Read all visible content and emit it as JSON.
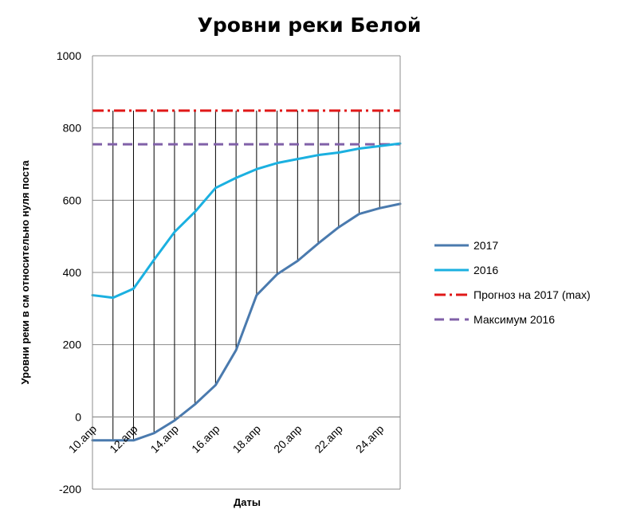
{
  "chart_data": {
    "type": "line",
    "title": "Уровни реки Белой",
    "xlabel": "Даты",
    "ylabel": "Уровни реки в см относительно нуля поста",
    "ylim": [
      -200,
      1000
    ],
    "yticks": [
      -200,
      0,
      200,
      400,
      600,
      800,
      1000
    ],
    "categories": [
      "10.апр",
      "11.апр",
      "12.апр",
      "13.апр",
      "14.апр",
      "15.апр",
      "16.апр",
      "17.апр",
      "18.апр",
      "19.апр",
      "20.апр",
      "21.апр",
      "22.апр",
      "23.апр",
      "24.апр",
      "25.апр"
    ],
    "xtick_labels": [
      "10.апр",
      "12.апр",
      "14.апр",
      "16.апр",
      "18.апр",
      "20.апр",
      "22.апр",
      "24.апр"
    ],
    "grid": true,
    "legend_position": "right",
    "series": [
      {
        "name": "2017",
        "color": "#4A7AAE",
        "style": "solid",
        "values": [
          -65,
          -65,
          -65,
          -45,
          -10,
          35,
          88,
          185,
          337,
          395,
          432,
          480,
          525,
          562,
          578,
          590
        ]
      },
      {
        "name": "2016",
        "color": "#1BB0E0",
        "style": "solid",
        "values": [
          337,
          330,
          355,
          435,
          512,
          568,
          634,
          662,
          686,
          703,
          714,
          725,
          732,
          743,
          750,
          757
        ]
      },
      {
        "name": "Прогноз на 2017 (max)",
        "color": "#E01818",
        "style": "dashdot",
        "values": [
          848,
          848,
          848,
          848,
          848,
          848,
          848,
          848,
          848,
          848,
          848,
          848,
          848,
          848,
          848,
          848
        ]
      },
      {
        "name": "Максимум 2016",
        "color": "#8060A8",
        "style": "dash",
        "values": [
          755,
          755,
          755,
          755,
          755,
          755,
          755,
          755,
          755,
          755,
          755,
          755,
          755,
          755,
          755,
          755
        ]
      }
    ]
  }
}
